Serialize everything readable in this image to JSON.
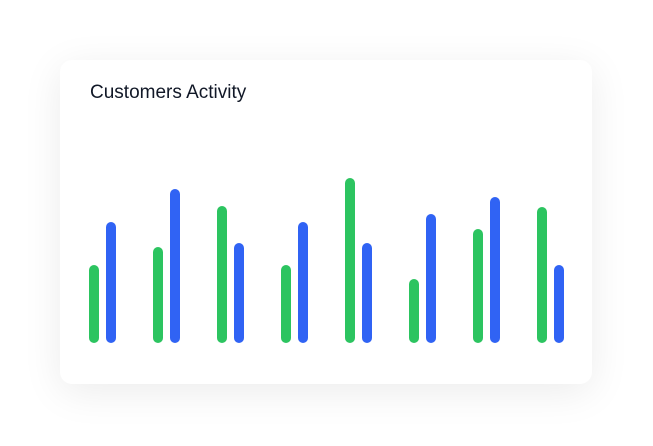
{
  "chart_data": {
    "type": "bar",
    "title": "Customers Activity",
    "series": [
      {
        "color": "#2cc460",
        "values": [
          78,
          96,
          137,
          78,
          165,
          64,
          114,
          136
        ]
      },
      {
        "color": "#3063f4",
        "values": [
          121,
          154,
          100,
          121,
          100,
          129,
          146,
          78
        ]
      }
    ],
    "ylim": [
      0,
      180
    ]
  }
}
